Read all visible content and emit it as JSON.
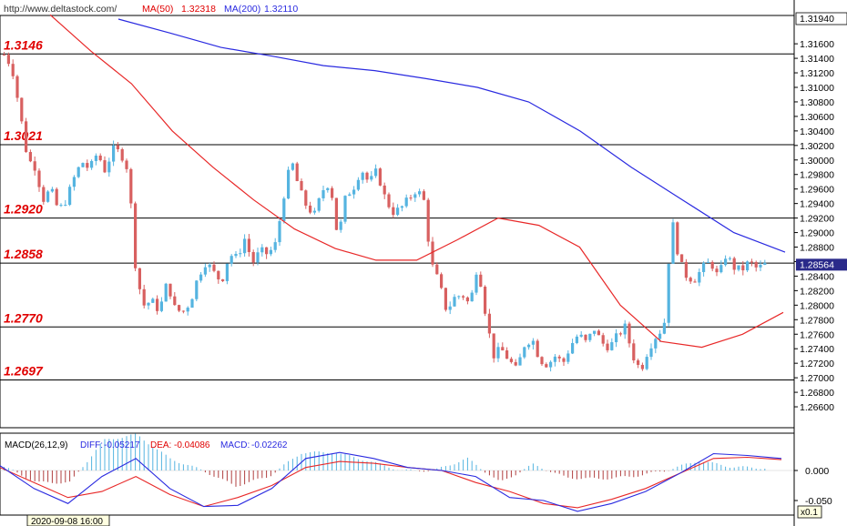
{
  "header": {
    "url": "http://www.deltastock.com/",
    "ma50_label": "MA(50)",
    "ma50_value": "1.32318",
    "ma200_label": "MA(200)",
    "ma200_value": "1.32110"
  },
  "colors": {
    "up_candle": "#55b4e0",
    "down_candle": "#d86060",
    "ma50": "#e82828",
    "ma200": "#2a2ae0",
    "level_text": "#e00000",
    "macd_diff": "#2a2ae0",
    "macd_dea": "#e82828",
    "hist_pos": "#55b4e0",
    "hist_neg": "#b04040"
  },
  "chart_data": [
    {
      "type": "candlestick",
      "y_axis": {
        "range": [
          1.2645,
          1.3194
        ],
        "ticks": [
          "1.31940",
          "1.31600",
          "1.31400",
          "1.31200",
          "1.31000",
          "1.30800",
          "1.30600",
          "1.30400",
          "1.30200",
          "1.30000",
          "1.29800",
          "1.29600",
          "1.29400",
          "1.29200",
          "1.29000",
          "1.28800",
          "1.28600",
          "1.28400",
          "1.28200",
          "1.28000",
          "1.27800",
          "1.27600",
          "1.27400",
          "1.27200",
          "1.27000",
          "1.26800",
          "1.26600"
        ],
        "top_label": "1.31940",
        "current_price": "1.28564"
      },
      "levels": [
        {
          "value": 1.3146,
          "label": "1.3146"
        },
        {
          "value": 1.3021,
          "label": "1.3021"
        },
        {
          "value": 1.292,
          "label": "1.2920"
        },
        {
          "value": 1.2858,
          "label": "1.2858"
        },
        {
          "value": 1.277,
          "label": "1.2770"
        },
        {
          "value": 1.2697,
          "label": "1.2697"
        }
      ],
      "ohlc_waypoints": [
        1.3145,
        1.3128,
        1.3068,
        1.3002,
        1.299,
        1.2945,
        1.296,
        1.293,
        1.2945,
        1.2975,
        1.2998,
        1.2987,
        1.301,
        1.2985,
        1.3015,
        1.301,
        1.2985,
        1.2842,
        1.28,
        1.2806,
        1.2792,
        1.2832,
        1.2795,
        1.279,
        1.2805,
        1.284,
        1.286,
        1.2845,
        1.2832,
        1.287,
        1.2865,
        1.2892,
        1.2858,
        1.2875,
        1.287,
        1.2885,
        1.295,
        1.3,
        1.296,
        1.2935,
        1.2925,
        1.2958,
        1.297,
        1.289,
        1.295,
        1.2962,
        1.2988,
        1.2968,
        1.2985,
        1.295,
        1.2928,
        1.2932,
        1.2945,
        1.2958,
        1.295,
        1.2858,
        1.2832,
        1.2792,
        1.281,
        1.2815,
        1.28,
        1.2858,
        1.279,
        1.273,
        1.274,
        1.2725,
        1.271,
        1.2745,
        1.2755,
        1.2725,
        1.2718,
        1.273,
        1.272,
        1.2745,
        1.276,
        1.2748,
        1.2768,
        1.2748,
        1.2742,
        1.2758,
        1.277,
        1.273,
        1.271,
        1.274,
        1.2758,
        1.277,
        1.292,
        1.286,
        1.2838,
        1.2836,
        1.2852,
        1.286,
        1.2838,
        1.287,
        1.2852,
        1.2848,
        1.286,
        1.285,
        1.2856
      ],
      "ma50_points": [
        1.32,
        1.315,
        1.3105,
        1.304,
        1.299,
        1.2945,
        1.2905,
        1.2878,
        1.2862,
        1.2862,
        1.289,
        1.292,
        1.291,
        1.288,
        1.28,
        1.275,
        1.2742,
        1.276,
        1.279
      ],
      "ma200_points": [
        1.3194,
        1.3175,
        1.3155,
        1.3143,
        1.313,
        1.3123,
        1.3112,
        1.31,
        1.308,
        1.304,
        1.299,
        1.2945,
        1.29,
        1.2873
      ],
      "ma50_value": 1.32318,
      "ma200_value": 1.3211
    },
    {
      "type": "macd",
      "params": "MACD(26,12,9)",
      "diff_label": "DIFF:",
      "diff_value": "-0.05217",
      "dea_label": "DEA:",
      "dea_value": "-0.04086",
      "macd_label": "MACD:",
      "macd_value": "-0.02262",
      "y_ticks": [
        "0.000",
        "-0.050"
      ],
      "diff_points": [
        0.008,
        -0.03,
        -0.055,
        -0.01,
        0.02,
        -0.03,
        -0.06,
        -0.058,
        -0.03,
        0.02,
        0.03,
        0.02,
        0.005,
        0.0,
        -0.01,
        -0.045,
        -0.05,
        -0.068,
        -0.055,
        -0.035,
        -0.005,
        0.028,
        0.025,
        0.02
      ],
      "dea_points": [
        0.005,
        -0.02,
        -0.045,
        -0.035,
        -0.01,
        -0.04,
        -0.06,
        -0.045,
        -0.025,
        0.005,
        0.015,
        0.012,
        0.005,
        0.0,
        -0.02,
        -0.035,
        -0.055,
        -0.062,
        -0.048,
        -0.03,
        -0.005,
        0.02,
        0.022,
        0.018
      ]
    }
  ],
  "footer": {
    "timestamp": "2020-09-08 16:00",
    "zoom": "x0.1"
  }
}
